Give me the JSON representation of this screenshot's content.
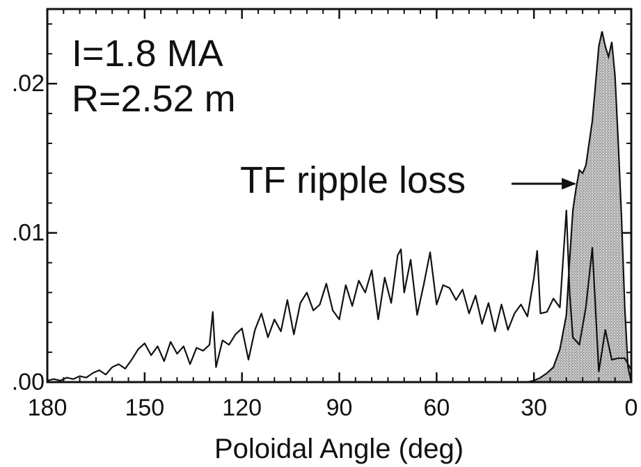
{
  "chart_data": {
    "type": "area",
    "xlabel": "Poloidal Angle (deg)",
    "ylabel": "",
    "xlim": [
      180,
      0
    ],
    "ylim": [
      0,
      0.025
    ],
    "x_ticks": [
      180,
      150,
      120,
      90,
      60,
      30,
      0
    ],
    "x_tick_labels": [
      "180",
      "150",
      "120",
      "90",
      "60",
      "30",
      "0"
    ],
    "y_ticks": [
      0,
      0.01,
      0.02
    ],
    "y_tick_labels": [
      ".00",
      ".01",
      ".02"
    ],
    "grid": false,
    "legend": "none",
    "annotations": {
      "current": "I=1.8 MA",
      "radius": "R=2.52 m",
      "arrow_label": "TF ripple loss"
    },
    "series": [
      {
        "style": "line",
        "color": "#111111",
        "x": [
          180,
          178,
          176,
          174,
          172,
          170,
          168,
          166,
          164,
          162,
          160,
          158,
          156,
          154,
          152,
          150,
          148,
          146,
          144,
          142,
          140,
          138,
          136,
          134,
          132,
          130,
          129,
          128,
          126,
          124,
          122,
          120,
          118,
          116,
          114,
          112,
          110,
          108,
          106,
          104,
          102,
          100,
          98,
          96,
          94,
          92,
          90,
          88,
          86,
          84,
          82,
          80,
          78,
          76,
          74,
          72,
          71,
          70,
          68,
          66,
          64,
          62,
          60,
          58,
          56,
          54,
          52,
          50,
          48,
          46,
          44,
          42,
          40,
          38,
          36,
          34,
          32,
          30,
          29,
          28,
          26,
          24,
          22,
          20,
          19,
          18,
          16,
          14,
          12,
          10,
          8,
          6,
          4,
          2,
          0
        ],
        "values": [
          0.0001,
          0.0002,
          0.0001,
          0.0003,
          0.0002,
          0.0004,
          0.0003,
          0.0006,
          0.0008,
          0.0005,
          0.001,
          0.0012,
          0.0009,
          0.0015,
          0.0022,
          0.0026,
          0.0018,
          0.0024,
          0.0014,
          0.0027,
          0.0019,
          0.0024,
          0.0012,
          0.0023,
          0.0021,
          0.0025,
          0.0047,
          0.001,
          0.0028,
          0.0025,
          0.0032,
          0.0036,
          0.0015,
          0.0035,
          0.0046,
          0.003,
          0.0042,
          0.0034,
          0.0055,
          0.0032,
          0.0053,
          0.006,
          0.0048,
          0.0052,
          0.0066,
          0.0048,
          0.0042,
          0.0065,
          0.0051,
          0.0068,
          0.006,
          0.0075,
          0.0042,
          0.007,
          0.0053,
          0.0085,
          0.0089,
          0.006,
          0.0082,
          0.0045,
          0.0065,
          0.0087,
          0.0052,
          0.0065,
          0.0063,
          0.0055,
          0.0062,
          0.0046,
          0.0058,
          0.0039,
          0.0053,
          0.0034,
          0.0052,
          0.0035,
          0.0046,
          0.0052,
          0.0044,
          0.007,
          0.0088,
          0.0046,
          0.0047,
          0.0056,
          0.005,
          0.0115,
          0.006,
          0.003,
          0.0025,
          0.005,
          0.009,
          0.0007,
          0.0035,
          0.0015,
          0.0016,
          0.0016,
          0.0008
        ]
      },
      {
        "style": "filled",
        "color": "#b8b8b8",
        "x": [
          32,
          30,
          28,
          26,
          24,
          22,
          20,
          19,
          18,
          17,
          16,
          15,
          14,
          13,
          12,
          11,
          10,
          9,
          8,
          7,
          6,
          5,
          4,
          3,
          2,
          1,
          0
        ],
        "values": [
          0,
          0.0001,
          0.0003,
          0.0006,
          0.001,
          0.0022,
          0.0045,
          0.0082,
          0.0115,
          0.013,
          0.0142,
          0.014,
          0.0145,
          0.016,
          0.0175,
          0.02,
          0.0225,
          0.0235,
          0.0225,
          0.0218,
          0.0228,
          0.0205,
          0.016,
          0.011,
          0.005,
          0.001,
          0
        ]
      }
    ]
  }
}
